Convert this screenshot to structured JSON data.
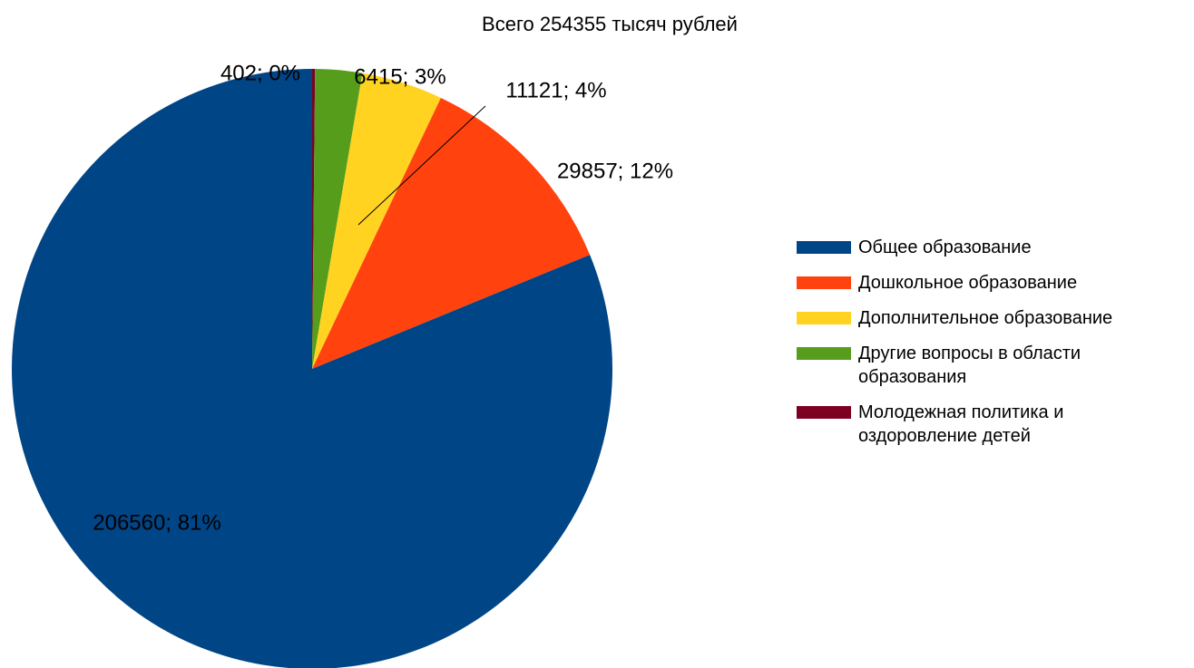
{
  "chart_data": {
    "type": "pie",
    "title": "Всего 254355 тысяч рублей",
    "categories": [
      "Общее образование",
      "Дошкольное образование",
      "Дополнительное образование",
      "Другие вопросы в области образования",
      "Молодежная политика и оздоровление детей"
    ],
    "values": [
      206560,
      29857,
      11121,
      6415,
      402
    ],
    "value_labels": [
      "206560; 81%",
      "29857; 12%",
      "11121; 4%",
      "6415; 3%",
      "402; 0%"
    ],
    "colors": [
      "#004586",
      "#ff420e",
      "#ffd320",
      "#579d1c",
      "#7e0021"
    ],
    "legend": "right"
  }
}
